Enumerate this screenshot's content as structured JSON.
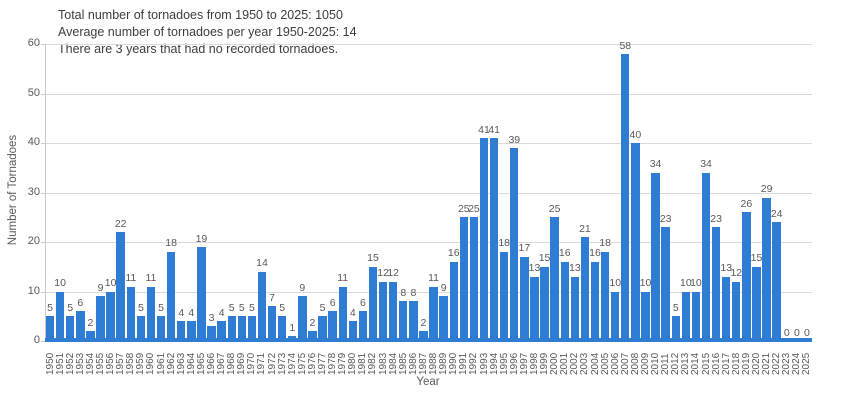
{
  "chart_data": {
    "type": "bar",
    "title": "",
    "annotations": [
      "Total number of tornadoes from 1950 to 2025: 1050",
      "Average number of tornadoes per year 1950-2025: 14",
      "There are 3 years that had no recorded tornadoes."
    ],
    "xlabel": "Year",
    "ylabel": "Number of Tornadoes",
    "ylim": [
      0,
      60
    ],
    "yticks": [
      0,
      10,
      20,
      30,
      40,
      50,
      60
    ],
    "grid": true,
    "legend": false,
    "bar_color": "#2e7cd4",
    "grid_color": "#d9d9d9",
    "text_color": "#595959",
    "categories": [
      "1950",
      "1951",
      "1952",
      "1953",
      "1954",
      "1955",
      "1956",
      "1957",
      "1958",
      "1959",
      "1960",
      "1961",
      "1962",
      "1963",
      "1964",
      "1965",
      "1966",
      "1967",
      "1968",
      "1969",
      "1970",
      "1971",
      "1972",
      "1973",
      "1974",
      "1975",
      "1976",
      "1977",
      "1978",
      "1979",
      "1980",
      "1981",
      "1982",
      "1983",
      "1984",
      "1985",
      "1986",
      "1987",
      "1988",
      "1989",
      "1990",
      "1991",
      "1992",
      "1993",
      "1994",
      "1995",
      "1996",
      "1997",
      "1998",
      "1999",
      "2000",
      "2001",
      "2002",
      "2003",
      "2004",
      "2005",
      "2006",
      "2007",
      "2008",
      "2009",
      "2010",
      "2011",
      "2012",
      "2013",
      "2014",
      "2015",
      "2016",
      "2017",
      "2018",
      "2019",
      "2020",
      "2021",
      "2022",
      "2023",
      "2024",
      "2025"
    ],
    "values": [
      5,
      10,
      5,
      6,
      2,
      9,
      10,
      22,
      11,
      5,
      11,
      5,
      18,
      4,
      4,
      19,
      3,
      4,
      5,
      5,
      5,
      14,
      7,
      5,
      1,
      9,
      2,
      5,
      6,
      11,
      4,
      6,
      15,
      12,
      12,
      8,
      8,
      2,
      11,
      9,
      16,
      25,
      25,
      41,
      41,
      18,
      39,
      17,
      13,
      15,
      25,
      16,
      13,
      21,
      16,
      18,
      10,
      58,
      40,
      10,
      34,
      23,
      5,
      10,
      10,
      34,
      23,
      13,
      12,
      26,
      15,
      29,
      24,
      0,
      0,
      0
    ],
    "stats": {
      "total_1950_2025": 1050,
      "average_per_year": 14,
      "zero_tornado_years": 3
    }
  }
}
